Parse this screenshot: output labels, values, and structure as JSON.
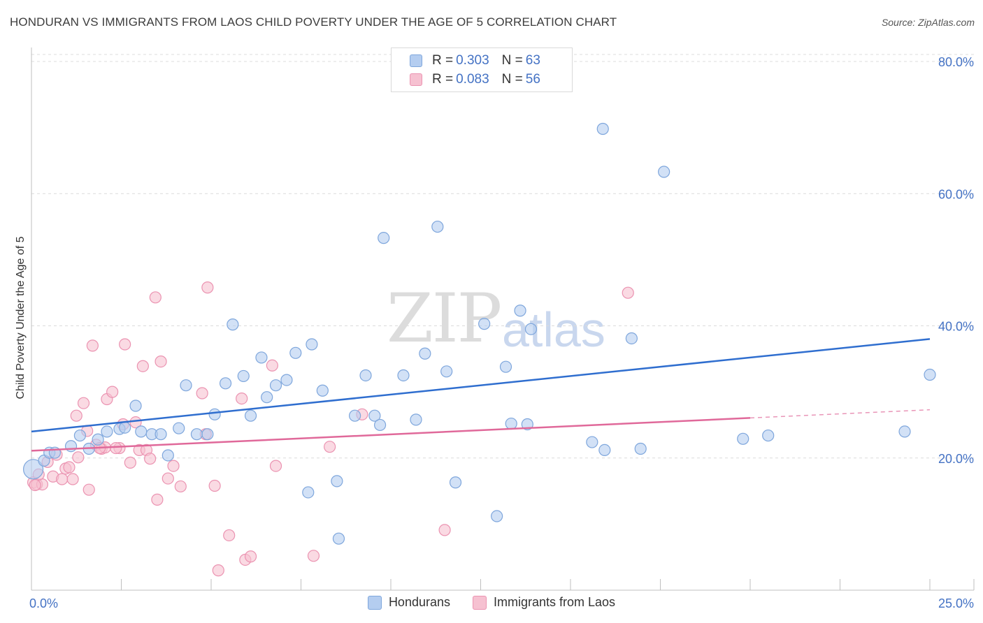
{
  "header": {
    "title": "HONDURAN VS IMMIGRANTS FROM LAOS CHILD POVERTY UNDER THE AGE OF 5 CORRELATION CHART",
    "source": "Source: ZipAtlas.com"
  },
  "watermark": {
    "zip": "ZIP",
    "atlas": "atlas"
  },
  "colors": {
    "blue_fill": "#b4cdf0",
    "blue_stroke": "#7ea6dc",
    "blue_line": "#2f6ecf",
    "pink_fill": "#f6c1d1",
    "pink_stroke": "#eb93b1",
    "pink_line": "#e0699a",
    "tick_text": "#4472c4"
  },
  "legend": {
    "series": [
      {
        "r_label": "R = ",
        "r_value": "0.303",
        "n_label": "N = ",
        "n_value": "63"
      },
      {
        "r_label": "R = ",
        "r_value": "0.083",
        "n_label": "N = ",
        "n_value": "56"
      }
    ]
  },
  "bottom_legend": [
    "Hondurans",
    "Immigrants from Laos"
  ],
  "chart_data": {
    "type": "scatter",
    "title": "HONDURAN VS IMMIGRANTS FROM LAOS CHILD POVERTY UNDER THE AGE OF 5 CORRELATION CHART",
    "xlabel": "",
    "ylabel": "Child Poverty Under the Age of 5",
    "xlim": [
      0,
      25
    ],
    "ylim": [
      0,
      80
    ],
    "x_tick_labels": [
      "0.0%",
      "25.0%"
    ],
    "y_ticks": [
      20,
      40,
      60,
      80
    ],
    "y_tick_labels": [
      "20.0%",
      "40.0%",
      "60.0%",
      "80.0%"
    ],
    "grid": true,
    "series": [
      {
        "name": "Hondurans",
        "trend": {
          "x": [
            0,
            25
          ],
          "y": [
            24.0,
            38.0
          ],
          "dashed_from": null
        },
        "points": [
          {
            "x": 0.05,
            "y": 18.3,
            "big": true
          },
          {
            "x": 0.35,
            "y": 19.6
          },
          {
            "x": 0.5,
            "y": 20.8
          },
          {
            "x": 0.65,
            "y": 20.8
          },
          {
            "x": 1.1,
            "y": 21.8
          },
          {
            "x": 1.35,
            "y": 23.4
          },
          {
            "x": 1.6,
            "y": 21.4
          },
          {
            "x": 1.85,
            "y": 22.8
          },
          {
            "x": 2.1,
            "y": 24.0
          },
          {
            "x": 2.45,
            "y": 24.4
          },
          {
            "x": 2.6,
            "y": 24.6
          },
          {
            "x": 2.9,
            "y": 27.9
          },
          {
            "x": 3.05,
            "y": 24.0
          },
          {
            "x": 3.35,
            "y": 23.6
          },
          {
            "x": 3.6,
            "y": 23.6
          },
          {
            "x": 3.8,
            "y": 20.4
          },
          {
            "x": 4.1,
            "y": 24.5
          },
          {
            "x": 4.3,
            "y": 31.0
          },
          {
            "x": 4.6,
            "y": 23.6
          },
          {
            "x": 4.9,
            "y": 23.6
          },
          {
            "x": 5.1,
            "y": 26.6
          },
          {
            "x": 5.4,
            "y": 31.3
          },
          {
            "x": 5.6,
            "y": 40.2
          },
          {
            "x": 5.9,
            "y": 32.4
          },
          {
            "x": 6.1,
            "y": 26.4
          },
          {
            "x": 6.4,
            "y": 35.2
          },
          {
            "x": 6.55,
            "y": 29.2
          },
          {
            "x": 6.8,
            "y": 31.0
          },
          {
            "x": 7.1,
            "y": 31.8
          },
          {
            "x": 7.35,
            "y": 35.9
          },
          {
            "x": 7.7,
            "y": 14.8
          },
          {
            "x": 7.8,
            "y": 37.2
          },
          {
            "x": 8.1,
            "y": 30.2
          },
          {
            "x": 8.5,
            "y": 16.5
          },
          {
            "x": 8.55,
            "y": 7.8
          },
          {
            "x": 9.0,
            "y": 26.4
          },
          {
            "x": 9.3,
            "y": 32.5
          },
          {
            "x": 9.55,
            "y": 26.4
          },
          {
            "x": 9.7,
            "y": 25.0
          },
          {
            "x": 9.8,
            "y": 53.3
          },
          {
            "x": 10.35,
            "y": 32.5
          },
          {
            "x": 10.7,
            "y": 25.8
          },
          {
            "x": 10.95,
            "y": 35.8
          },
          {
            "x": 11.3,
            "y": 55.0
          },
          {
            "x": 11.55,
            "y": 33.1
          },
          {
            "x": 11.8,
            "y": 16.3
          },
          {
            "x": 12.6,
            "y": 40.3
          },
          {
            "x": 12.95,
            "y": 11.2
          },
          {
            "x": 13.2,
            "y": 33.8
          },
          {
            "x": 13.35,
            "y": 25.2
          },
          {
            "x": 13.6,
            "y": 42.3
          },
          {
            "x": 13.9,
            "y": 39.5
          },
          {
            "x": 13.8,
            "y": 25.1
          },
          {
            "x": 15.6,
            "y": 22.4
          },
          {
            "x": 15.9,
            "y": 69.8
          },
          {
            "x": 15.95,
            "y": 21.2
          },
          {
            "x": 16.7,
            "y": 38.1
          },
          {
            "x": 16.95,
            "y": 21.4
          },
          {
            "x": 17.6,
            "y": 63.3
          },
          {
            "x": 19.8,
            "y": 22.9
          },
          {
            "x": 20.5,
            "y": 23.4
          },
          {
            "x": 24.3,
            "y": 24.0
          },
          {
            "x": 25.0,
            "y": 32.6
          }
        ]
      },
      {
        "name": "Immigrants from Laos",
        "trend": {
          "x": [
            0,
            25
          ],
          "y": [
            21.1,
            27.3
          ],
          "dashed_from": 20.0
        },
        "points": [
          {
            "x": 0.05,
            "y": 16.3
          },
          {
            "x": 0.15,
            "y": 16.0
          },
          {
            "x": 0.3,
            "y": 16.0
          },
          {
            "x": 0.45,
            "y": 19.4
          },
          {
            "x": 0.6,
            "y": 17.2
          },
          {
            "x": 0.7,
            "y": 20.5
          },
          {
            "x": 0.85,
            "y": 16.8
          },
          {
            "x": 0.95,
            "y": 18.4
          },
          {
            "x": 1.05,
            "y": 18.6
          },
          {
            "x": 1.15,
            "y": 16.8
          },
          {
            "x": 1.25,
            "y": 26.4
          },
          {
            "x": 1.3,
            "y": 20.1
          },
          {
            "x": 1.45,
            "y": 28.3
          },
          {
            "x": 1.55,
            "y": 24.1
          },
          {
            "x": 1.6,
            "y": 15.2
          },
          {
            "x": 1.7,
            "y": 37.0
          },
          {
            "x": 1.8,
            "y": 22.0
          },
          {
            "x": 1.95,
            "y": 21.4
          },
          {
            "x": 2.05,
            "y": 21.6
          },
          {
            "x": 2.1,
            "y": 28.9
          },
          {
            "x": 2.25,
            "y": 30.0
          },
          {
            "x": 2.45,
            "y": 21.5
          },
          {
            "x": 2.55,
            "y": 25.1
          },
          {
            "x": 2.6,
            "y": 37.2
          },
          {
            "x": 2.75,
            "y": 19.3
          },
          {
            "x": 2.9,
            "y": 25.4
          },
          {
            "x": 3.0,
            "y": 21.2
          },
          {
            "x": 3.1,
            "y": 33.9
          },
          {
            "x": 3.2,
            "y": 21.2
          },
          {
            "x": 3.3,
            "y": 19.9
          },
          {
            "x": 3.45,
            "y": 44.3
          },
          {
            "x": 3.5,
            "y": 13.7
          },
          {
            "x": 3.6,
            "y": 34.6
          },
          {
            "x": 3.8,
            "y": 16.9
          },
          {
            "x": 3.95,
            "y": 18.8
          },
          {
            "x": 4.15,
            "y": 15.7
          },
          {
            "x": 4.75,
            "y": 29.8
          },
          {
            "x": 4.85,
            "y": 23.6
          },
          {
            "x": 4.9,
            "y": 45.8
          },
          {
            "x": 5.1,
            "y": 15.8
          },
          {
            "x": 5.2,
            "y": 3.0
          },
          {
            "x": 5.5,
            "y": 8.3
          },
          {
            "x": 5.85,
            "y": 29.0
          },
          {
            "x": 5.95,
            "y": 4.6
          },
          {
            "x": 6.1,
            "y": 5.1
          },
          {
            "x": 6.7,
            "y": 34.0
          },
          {
            "x": 6.8,
            "y": 18.8
          },
          {
            "x": 7.85,
            "y": 5.2
          },
          {
            "x": 8.3,
            "y": 21.7
          },
          {
            "x": 9.2,
            "y": 26.6
          },
          {
            "x": 11.5,
            "y": 9.1
          },
          {
            "x": 16.6,
            "y": 45.0
          },
          {
            "x": 0.2,
            "y": 17.5
          },
          {
            "x": 0.1,
            "y": 15.9
          },
          {
            "x": 2.35,
            "y": 21.5
          },
          {
            "x": 1.9,
            "y": 21.5
          }
        ]
      }
    ]
  }
}
